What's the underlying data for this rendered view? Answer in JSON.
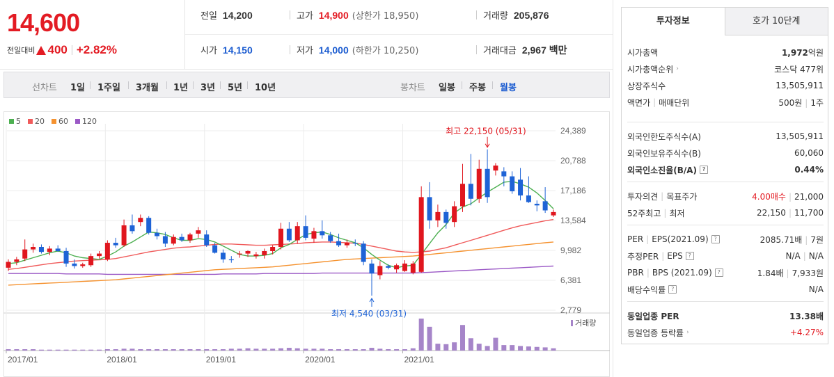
{
  "summary": {
    "current_price": "14,600",
    "change_label": "전일대비",
    "change_amount": "400",
    "change_rate": "+2.82%",
    "change_direction": "up",
    "up_color": "#e31b23",
    "down_color": "#1a5bd0"
  },
  "stats": {
    "prev_close": {
      "label": "전일",
      "value": "14,200"
    },
    "high": {
      "label": "고가",
      "value": "14,900",
      "extra": "(상한가 18,950)"
    },
    "volume": {
      "label": "거래량",
      "value": "205,876"
    },
    "open": {
      "label": "시가",
      "value": "14,150"
    },
    "low": {
      "label": "저가",
      "value": "14,000",
      "extra": "(하한가 10,250)"
    },
    "amount": {
      "label": "거래대금",
      "value": "2,967 백만"
    }
  },
  "toolbar": {
    "line_title": "선차트",
    "line_periods": [
      "1일",
      "1주일",
      "3개월",
      "1년",
      "3년",
      "5년",
      "10년"
    ],
    "candle_title": "봉차트",
    "candle_periods": [
      "일봉",
      "주봉",
      "월봉"
    ],
    "active_candle": "월봉"
  },
  "chart_data": {
    "type": "candlestick",
    "legend": [
      {
        "name": "5",
        "color": "#4caf50"
      },
      {
        "name": "20",
        "color": "#f05a5a"
      },
      {
        "name": "60",
        "color": "#f5922f"
      },
      {
        "name": "120",
        "color": "#9b59c6"
      }
    ],
    "y_ticks": [
      "24,389",
      "20,788",
      "17,186",
      "13,584",
      "9,982",
      "6,381",
      "2,779"
    ],
    "y_tick_values": [
      24389,
      20788,
      17186,
      13584,
      9982,
      6381,
      2779
    ],
    "x_ticks": [
      "2017/01",
      "2018/01",
      "2019/01",
      "2020/01",
      "2021/01"
    ],
    "x_tick_index": [
      0,
      12,
      24,
      36,
      48
    ],
    "max_annotation": "최고 22,150 (05/31)",
    "min_annotation": "최저 4,540 (03/31)",
    "max_value": 22150,
    "min_value": 4540,
    "volume_label": "거래량",
    "candles": [
      {
        "o": 7900,
        "h": 8900,
        "l": 7500,
        "c": 8600
      },
      {
        "o": 8600,
        "h": 9200,
        "l": 8200,
        "c": 8900
      },
      {
        "o": 9000,
        "h": 11300,
        "l": 8700,
        "c": 10100
      },
      {
        "o": 10100,
        "h": 10800,
        "l": 9700,
        "c": 10400
      },
      {
        "o": 10400,
        "h": 10700,
        "l": 9600,
        "c": 9800
      },
      {
        "o": 9800,
        "h": 10500,
        "l": 9400,
        "c": 10200
      },
      {
        "o": 10200,
        "h": 10600,
        "l": 9800,
        "c": 9900
      },
      {
        "o": 9900,
        "h": 10300,
        "l": 8000,
        "c": 8400
      },
      {
        "o": 8400,
        "h": 8900,
        "l": 7800,
        "c": 8100
      },
      {
        "o": 8100,
        "h": 8500,
        "l": 7900,
        "c": 8300
      },
      {
        "o": 8200,
        "h": 9600,
        "l": 8000,
        "c": 9300
      },
      {
        "o": 9300,
        "h": 9900,
        "l": 9000,
        "c": 9600
      },
      {
        "o": 8900,
        "h": 11200,
        "l": 8700,
        "c": 10900
      },
      {
        "o": 10900,
        "h": 11500,
        "l": 10300,
        "c": 10600
      },
      {
        "o": 10600,
        "h": 13700,
        "l": 10400,
        "c": 13000
      },
      {
        "o": 13000,
        "h": 14300,
        "l": 12000,
        "c": 12300
      },
      {
        "o": 13400,
        "h": 14300,
        "l": 12900,
        "c": 13900
      },
      {
        "o": 13900,
        "h": 14100,
        "l": 11900,
        "c": 12100
      },
      {
        "o": 12100,
        "h": 12600,
        "l": 11300,
        "c": 11700
      },
      {
        "o": 11700,
        "h": 12200,
        "l": 10400,
        "c": 10800
      },
      {
        "o": 10800,
        "h": 11900,
        "l": 10600,
        "c": 11600
      },
      {
        "o": 11600,
        "h": 12000,
        "l": 11000,
        "c": 11200
      },
      {
        "o": 11200,
        "h": 12100,
        "l": 10900,
        "c": 11900
      },
      {
        "o": 12000,
        "h": 12800,
        "l": 11500,
        "c": 12400
      },
      {
        "o": 11900,
        "h": 12400,
        "l": 10400,
        "c": 10600
      },
      {
        "o": 10600,
        "h": 10900,
        "l": 9600,
        "c": 9700
      },
      {
        "o": 9700,
        "h": 10100,
        "l": 8500,
        "c": 8900
      },
      {
        "o": 8900,
        "h": 9300,
        "l": 8500,
        "c": 8800
      },
      {
        "o": 9500,
        "h": 9900,
        "l": 9100,
        "c": 9600
      },
      {
        "o": 9600,
        "h": 10000,
        "l": 9200,
        "c": 9900
      },
      {
        "o": 9300,
        "h": 9800,
        "l": 9000,
        "c": 9500
      },
      {
        "o": 9400,
        "h": 10200,
        "l": 9000,
        "c": 9900
      },
      {
        "o": 9900,
        "h": 10600,
        "l": 9500,
        "c": 10400
      },
      {
        "o": 10400,
        "h": 13300,
        "l": 10100,
        "c": 12600
      },
      {
        "o": 12600,
        "h": 13400,
        "l": 11000,
        "c": 11200
      },
      {
        "o": 11200,
        "h": 13400,
        "l": 10800,
        "c": 12900
      },
      {
        "o": 12900,
        "h": 14200,
        "l": 11200,
        "c": 11500
      },
      {
        "o": 11400,
        "h": 12700,
        "l": 10900,
        "c": 12300
      },
      {
        "o": 12300,
        "h": 13600,
        "l": 11400,
        "c": 11800
      },
      {
        "o": 11800,
        "h": 12200,
        "l": 10900,
        "c": 11100
      },
      {
        "o": 11100,
        "h": 12000,
        "l": 10400,
        "c": 10600
      },
      {
        "o": 10600,
        "h": 11300,
        "l": 10300,
        "c": 10900
      },
      {
        "o": 10900,
        "h": 11300,
        "l": 10500,
        "c": 10800
      },
      {
        "o": 10800,
        "h": 11100,
        "l": 8200,
        "c": 8600
      },
      {
        "o": 8400,
        "h": 8900,
        "l": 4540,
        "c": 7200
      },
      {
        "o": 7000,
        "h": 8700,
        "l": 6500,
        "c": 8100
      },
      {
        "o": 8100,
        "h": 8300,
        "l": 7700,
        "c": 7900
      },
      {
        "o": 7700,
        "h": 8400,
        "l": 7300,
        "c": 8200
      },
      {
        "o": 7500,
        "h": 8800,
        "l": 7400,
        "c": 8400
      },
      {
        "o": 7300,
        "h": 8700,
        "l": 7100,
        "c": 8400
      },
      {
        "o": 7400,
        "h": 17700,
        "l": 7300,
        "c": 16400
      },
      {
        "o": 16400,
        "h": 18200,
        "l": 12600,
        "c": 13600
      },
      {
        "o": 13600,
        "h": 15500,
        "l": 12800,
        "c": 14600
      },
      {
        "o": 14600,
        "h": 14900,
        "l": 12600,
        "c": 13300
      },
      {
        "o": 13400,
        "h": 15900,
        "l": 12800,
        "c": 15300
      },
      {
        "o": 15300,
        "h": 20400,
        "l": 14600,
        "c": 18000
      },
      {
        "o": 18000,
        "h": 21600,
        "l": 15400,
        "c": 16200
      },
      {
        "o": 16200,
        "h": 20900,
        "l": 15700,
        "c": 19800
      },
      {
        "o": 19800,
        "h": 22150,
        "l": 15700,
        "c": 16400
      },
      {
        "o": 19600,
        "h": 20500,
        "l": 19000,
        "c": 20200
      },
      {
        "o": 19500,
        "h": 20000,
        "l": 17700,
        "c": 18900
      },
      {
        "o": 18900,
        "h": 19500,
        "l": 16800,
        "c": 17100
      },
      {
        "o": 18500,
        "h": 19900,
        "l": 16000,
        "c": 16600
      },
      {
        "o": 16600,
        "h": 18900,
        "l": 15700,
        "c": 15800
      },
      {
        "o": 15600,
        "h": 16000,
        "l": 14700,
        "c": 15400
      },
      {
        "o": 15900,
        "h": 17600,
        "l": 14500,
        "c": 14800
      },
      {
        "o": 14200,
        "h": 14900,
        "l": 14000,
        "c": 14600
      }
    ],
    "volume": [
      3,
      3,
      3,
      3,
      2,
      2,
      2,
      2,
      2,
      2,
      2,
      2,
      3,
      3,
      4,
      4,
      3,
      3,
      3,
      3,
      3,
      3,
      3,
      3,
      3,
      3,
      3,
      4,
      4,
      5,
      4,
      4,
      4,
      5,
      6,
      5,
      4,
      4,
      4,
      3,
      3,
      3,
      3,
      3,
      6,
      4,
      3,
      3,
      3,
      5,
      70,
      52,
      15,
      14,
      18,
      56,
      27,
      15,
      10,
      28,
      12,
      12,
      10,
      9,
      8,
      7,
      5
    ],
    "ma5": [
      8400,
      8500,
      8800,
      9100,
      9400,
      9700,
      9900,
      9700,
      9300,
      9100,
      9000,
      8900,
      9300,
      9800,
      10500,
      11000,
      11600,
      12200,
      12100,
      11900,
      11500,
      11200,
      11200,
      11400,
      11300,
      11000,
      10500,
      10000,
      9500,
      9300,
      9300,
      9400,
      9600,
      10300,
      10700,
      11300,
      11900,
      12100,
      12200,
      11900,
      11500,
      11200,
      10900,
      10300,
      9500,
      8800,
      8200,
      7900,
      8100,
      8200,
      9500,
      10800,
      12100,
      13100,
      14500,
      15200,
      15600,
      16300,
      17000,
      17600,
      18200,
      18300,
      18000,
      17600,
      16900,
      16000,
      15000
    ],
    "ma20": [
      7700,
      7800,
      7950,
      8100,
      8250,
      8400,
      8500,
      8600,
      8700,
      8750,
      8800,
      8850,
      8900,
      9000,
      9200,
      9400,
      9600,
      9800,
      9950,
      10100,
      10250,
      10350,
      10400,
      10500,
      10600,
      10700,
      10750,
      10750,
      10700,
      10650,
      10600,
      10600,
      10650,
      10700,
      10750,
      10800,
      10900,
      10950,
      11000,
      11000,
      10950,
      10900,
      10850,
      10700,
      10500,
      10300,
      10100,
      9900,
      9800,
      9750,
      9800,
      9900,
      10100,
      10300,
      10600,
      10900,
      11200,
      11500,
      11800,
      12100,
      12400,
      12700,
      12950,
      13150,
      13350,
      13550,
      13700
    ],
    "ma60": [
      5800,
      5850,
      5900,
      5950,
      6000,
      6050,
      6100,
      6150,
      6200,
      6250,
      6300,
      6350,
      6400,
      6450,
      6550,
      6650,
      6750,
      6850,
      6950,
      7050,
      7150,
      7250,
      7350,
      7450,
      7550,
      7650,
      7700,
      7750,
      7800,
      7850,
      7900,
      7950,
      8000,
      8100,
      8200,
      8300,
      8400,
      8500,
      8600,
      8700,
      8800,
      8900,
      8950,
      9000,
      9050,
      9100,
      9150,
      9200,
      9250,
      9300,
      9400,
      9500,
      9600,
      9700,
      9800,
      9900,
      10000,
      10100,
      10200,
      10300,
      10400,
      10500,
      10600,
      10700,
      10800,
      10900,
      11000
    ],
    "ma120": [
      7200,
      7200,
      7200,
      7200,
      7200,
      7200,
      7200,
      7150,
      7150,
      7150,
      7150,
      7150,
      7100,
      7100,
      7100,
      7100,
      7100,
      7100,
      7100,
      7100,
      7100,
      7100,
      7100,
      7100,
      7100,
      7100,
      7150,
      7150,
      7150,
      7150,
      7150,
      7200,
      7200,
      7200,
      7200,
      7200,
      7200,
      7200,
      7250,
      7250,
      7250,
      7250,
      7250,
      7250,
      7250,
      7250,
      7250,
      7250,
      7250,
      7250,
      7300,
      7350,
      7400,
      7450,
      7500,
      7550,
      7600,
      7650,
      7700,
      7750,
      7800,
      7850,
      7900,
      7950,
      8000,
      8050,
      8100
    ]
  },
  "panel": {
    "tabs": [
      "투자정보",
      "호가 10단계"
    ],
    "active_tab": "투자정보",
    "market_cap": {
      "label": "시가총액",
      "value": "1,972",
      "unit": "억원"
    },
    "market_cap_rank": {
      "label": "시가총액순위",
      "value": "코스닥 477위"
    },
    "shares": {
      "label": "상장주식수",
      "value": "13,505,911"
    },
    "face_value": {
      "label1": "액면가",
      "label2": "매매단위",
      "value1": "500원",
      "value2": "1주"
    },
    "foreign_limit": {
      "label": "외국인한도주식수(A)",
      "value": "13,505,911"
    },
    "foreign_hold": {
      "label": "외국인보유주식수(B)",
      "value": "60,060"
    },
    "foreign_ratio": {
      "label": "외국인소진율(B/A)",
      "value": "0.44%"
    },
    "opinion": {
      "label1": "투자의견",
      "label2": "목표주가",
      "value1": "4.00매수",
      "value2": "21,000"
    },
    "week52": {
      "label1": "52주최고",
      "label2": "최저",
      "value1": "22,150",
      "value2": "11,700"
    },
    "per_eps": {
      "label1": "PER",
      "label2": "EPS(2021.09)",
      "value1": "2085.71배",
      "value2": "7원"
    },
    "est_per_eps": {
      "label1": "추정PER",
      "label2": "EPS",
      "value1": "N/A",
      "value2": "N/A"
    },
    "pbr_bps": {
      "label1": "PBR",
      "label2": "BPS (2021.09)",
      "value1": "1.84배",
      "value2": "7,933원"
    },
    "dividend": {
      "label": "배당수익률",
      "value": "N/A"
    },
    "sector_per": {
      "label": "동일업종 PER",
      "value": "13.38배"
    },
    "sector_change": {
      "label": "동일업종 등락률",
      "value": "+4.27%"
    }
  }
}
